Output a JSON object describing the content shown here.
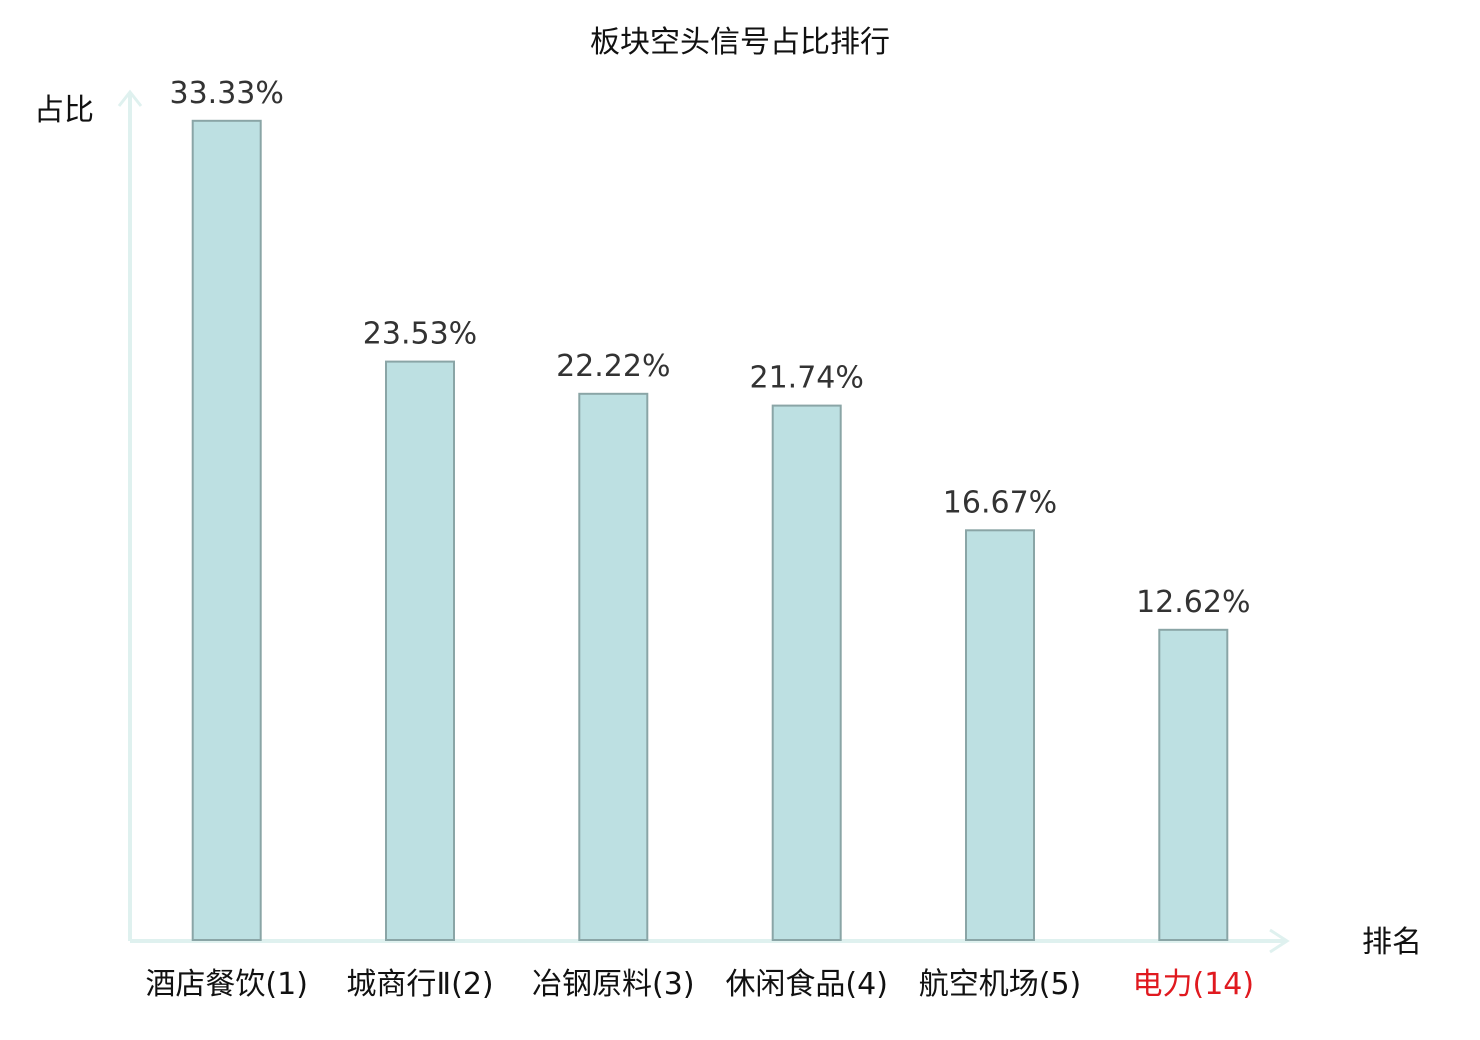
{
  "chart_data": {
    "type": "bar",
    "title": "板块空头信号占比排行",
    "xlabel": "排名",
    "ylabel": "占比",
    "categories": [
      "酒店餐饮(1)",
      "城商行Ⅱ(2)",
      "冶钢原料(3)",
      "休闲食品(4)",
      "航空机场(5)",
      "电力(14)"
    ],
    "values": [
      33.33,
      23.53,
      22.22,
      21.74,
      16.67,
      12.62
    ],
    "value_labels": [
      "33.33%",
      "23.53%",
      "22.22%",
      "21.74%",
      "16.67%",
      "12.62%"
    ],
    "category_colors": [
      "#111111",
      "#111111",
      "#111111",
      "#111111",
      "#111111",
      "#e0191f"
    ],
    "ylim": [
      0,
      34.5
    ],
    "grid": false,
    "legend": "none",
    "colors": {
      "bar_fill": "#bde0e2",
      "bar_stroke": "#8aa5a6",
      "axis": "#dff1ef"
    }
  }
}
